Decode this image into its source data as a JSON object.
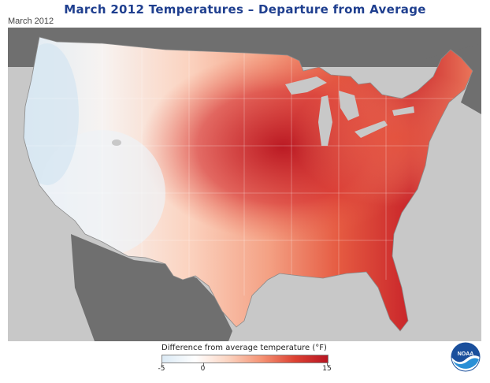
{
  "title": "March 2012 Temperatures – Departure from Average",
  "date_label": "March 2012",
  "legend": {
    "title": "Difference from average temperature (°F)",
    "min": -5,
    "max": 15,
    "ticks": [
      {
        "value": -5,
        "label": "-5"
      },
      {
        "value": 0,
        "label": "0"
      },
      {
        "value": 15,
        "label": "15"
      }
    ],
    "colors": [
      "#dbeaf5",
      "#ffffff",
      "#fbd3c0",
      "#f59374",
      "#dc4233",
      "#b81623"
    ]
  },
  "logo": {
    "text": "NOAA",
    "icon": "noaa-logo-icon"
  },
  "colors": {
    "ocean": "#c8c8c8",
    "land_outside": "#6f6f6f",
    "lakes": "#c8c8c8",
    "title": "#1f3f8f"
  }
}
